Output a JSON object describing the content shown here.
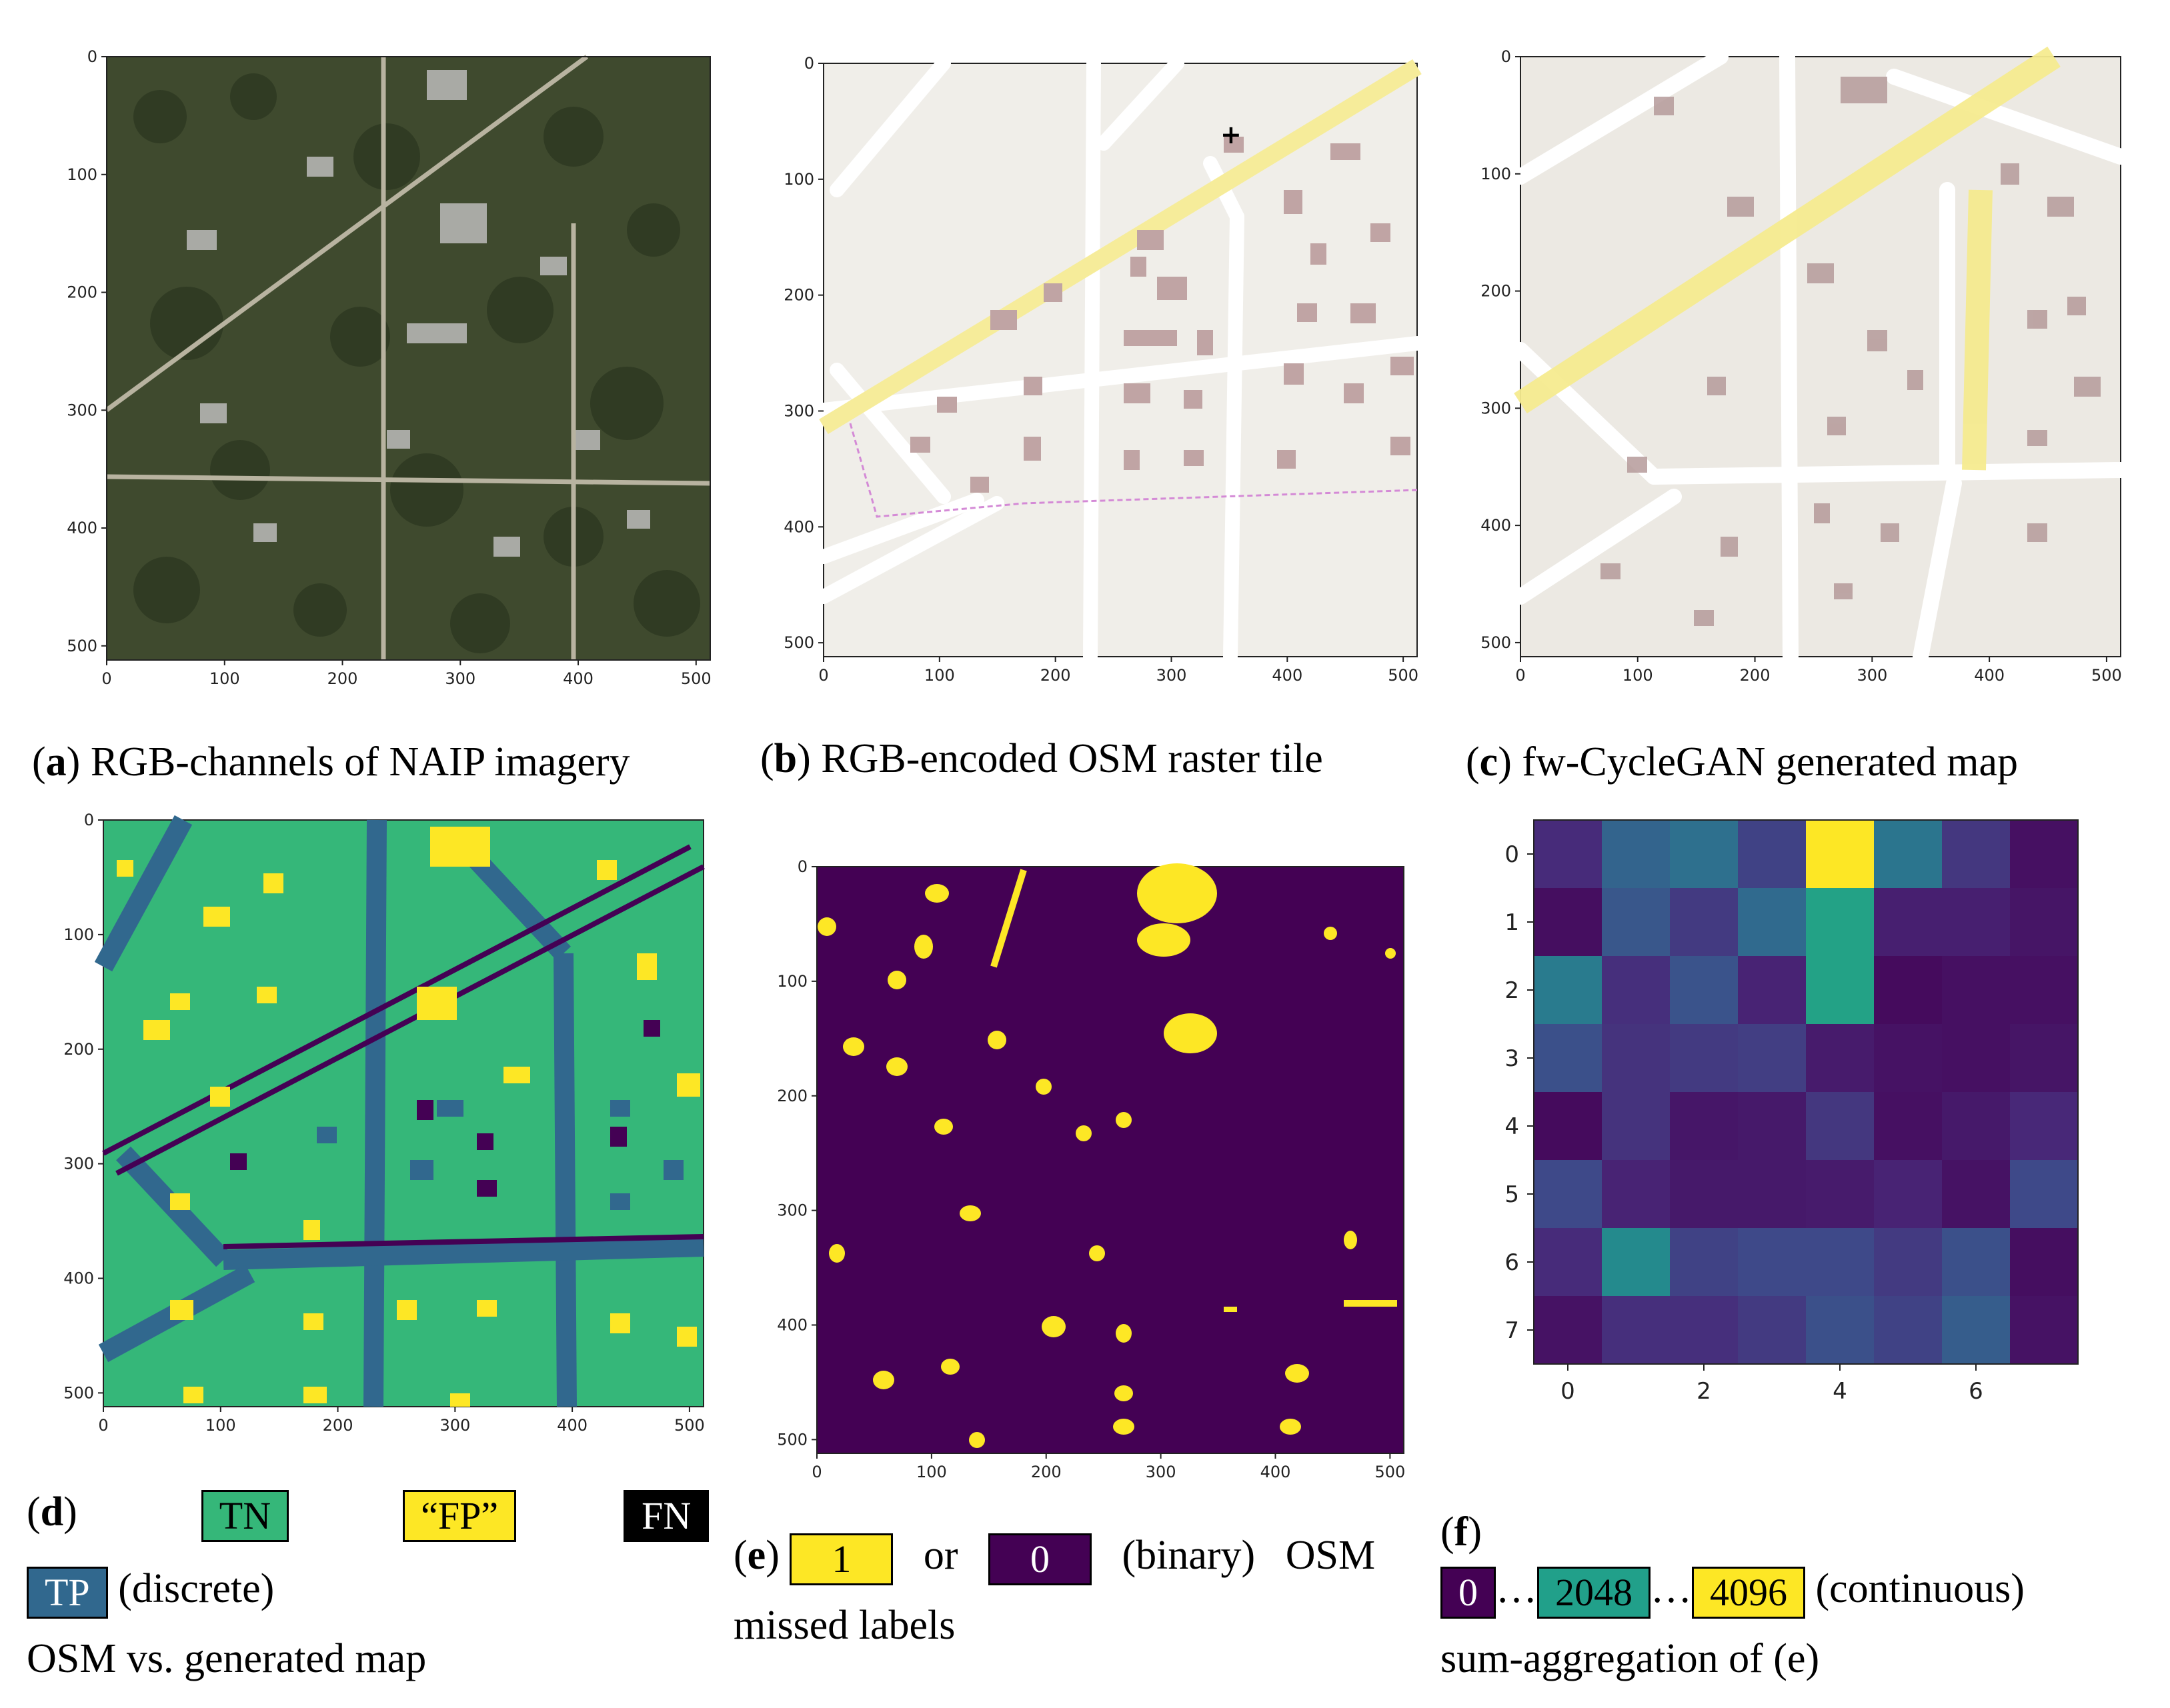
{
  "figure": {
    "tick_labels": [
      "0",
      "100",
      "200",
      "300",
      "400",
      "500"
    ],
    "heatmap_ticks_x": [
      "0",
      "2",
      "4",
      "6"
    ],
    "heatmap_ticks_y": [
      "0",
      "1",
      "2",
      "3",
      "4",
      "5",
      "6",
      "7"
    ]
  },
  "captions": {
    "a": {
      "letter": "a",
      "text": "RGB-channels of NAIP imagery"
    },
    "b": {
      "letter": "b",
      "text": "RGB-encoded OSM raster tile"
    },
    "c": {
      "letter": "c",
      "text": "fw-CycleGAN generated map"
    },
    "d": {
      "letter": "d",
      "tn": "TN",
      "fp": "“FP”",
      "fn": "FN",
      "tp": "TP",
      "kind": "(discrete)",
      "line2": "OSM vs. generated map"
    },
    "e": {
      "letter": "e",
      "one": "1",
      "or": "or",
      "zero": "0",
      "kind": "(binary)",
      "osm": "OSM",
      "line2": "missed labels"
    },
    "f": {
      "letter": "f",
      "zero": "0",
      "mid": "2048",
      "max": "4096",
      "ellipsis": "…",
      "kind": "(continuous)",
      "line2": "sum-aggregation of (e)"
    }
  },
  "colors": {
    "viridis_dark": "#440154",
    "viridis_blue": "#31688e",
    "viridis_green": "#35b779",
    "viridis_yellow": "#fde725",
    "map_background": "#f0eee9",
    "building": "#c0a4a4",
    "road": "#ffffff",
    "major_road": "#f6ec9a"
  },
  "chart_data": {
    "type": "heatmap",
    "x": [
      0,
      1,
      2,
      3,
      4,
      5,
      6,
      7
    ],
    "y": [
      0,
      1,
      2,
      3,
      4,
      5,
      6,
      7
    ],
    "zlim": [
      0,
      4096
    ],
    "colormap": "viridis",
    "values": [
      [
        500,
        1300,
        1500,
        800,
        4096,
        1600,
        650,
        180
      ],
      [
        150,
        1100,
        700,
        1400,
        2350,
        350,
        350,
        230
      ],
      [
        1700,
        550,
        1050,
        400,
        2350,
        120,
        180,
        180
      ],
      [
        1000,
        600,
        700,
        750,
        300,
        200,
        180,
        230
      ],
      [
        120,
        600,
        250,
        280,
        650,
        180,
        280,
        450
      ],
      [
        900,
        400,
        280,
        280,
        300,
        400,
        200,
        900
      ],
      [
        500,
        1950,
        800,
        900,
        900,
        700,
        1000,
        150
      ],
      [
        200,
        550,
        550,
        700,
        1000,
        800,
        1200,
        200
      ]
    ]
  }
}
